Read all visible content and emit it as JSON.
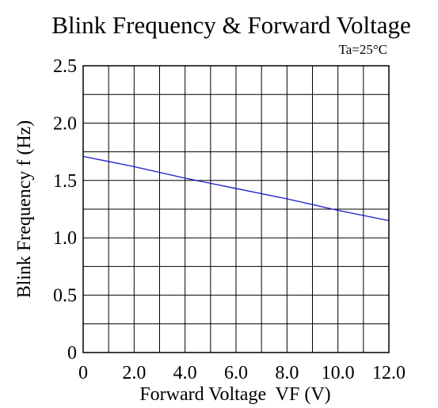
{
  "chart_data": {
    "type": "line",
    "title": "Blink Frequency & Forward Voltage",
    "annotation": "Ta=25°C",
    "xlabel": "Forward Voltage  VF (V)",
    "ylabel": "Blink Frequency f (Hz)",
    "xlim": [
      0,
      12
    ],
    "ylim": [
      0,
      2.5
    ],
    "x_ticks": [
      {
        "value": 0,
        "label": "0"
      },
      {
        "value": 2,
        "label": "2.0"
      },
      {
        "value": 4,
        "label": "4.0"
      },
      {
        "value": 6,
        "label": "6.0"
      },
      {
        "value": 8,
        "label": "8.0"
      },
      {
        "value": 10,
        "label": "10.0"
      },
      {
        "value": 12,
        "label": "12.0"
      }
    ],
    "y_ticks": [
      {
        "value": 0,
        "label": "0"
      },
      {
        "value": 0.5,
        "label": "0.5"
      },
      {
        "value": 1.0,
        "label": "1.0"
      },
      {
        "value": 1.5,
        "label": "1.5"
      },
      {
        "value": 2.0,
        "label": "2.0"
      },
      {
        "value": 2.5,
        "label": "2.5"
      }
    ],
    "x_grid_step": 1,
    "y_grid_step": 0.25,
    "grid": true,
    "line_color": "#1a1acc",
    "series": [
      {
        "x": [
          0,
          2,
          4,
          6,
          8,
          10,
          12
        ],
        "y": [
          1.71,
          1.62,
          1.52,
          1.43,
          1.34,
          1.24,
          1.15
        ]
      }
    ]
  }
}
